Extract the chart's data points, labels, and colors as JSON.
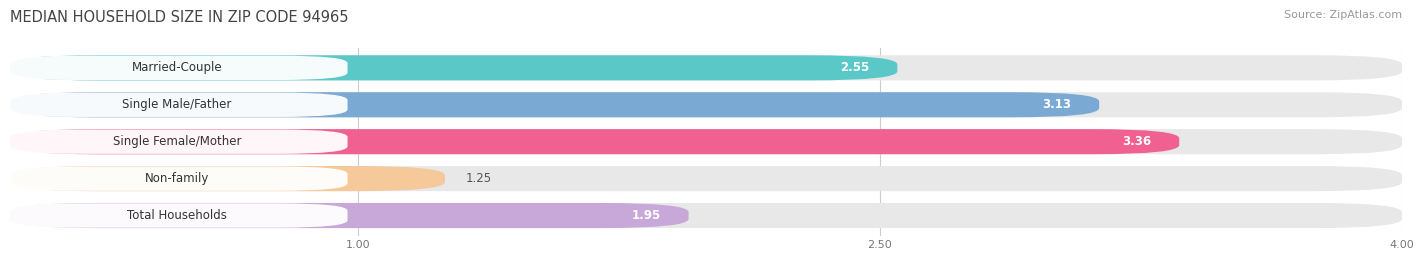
{
  "title": "MEDIAN HOUSEHOLD SIZE IN ZIP CODE 94965",
  "source": "Source: ZipAtlas.com",
  "categories": [
    "Married-Couple",
    "Single Male/Father",
    "Single Female/Mother",
    "Non-family",
    "Total Households"
  ],
  "values": [
    2.55,
    3.13,
    3.36,
    1.25,
    1.95
  ],
  "bar_colors": [
    "#5bc8c8",
    "#7aaad4",
    "#f06090",
    "#f5c99a",
    "#c8a8d8"
  ],
  "bar_bg_color": "#e8e8e8",
  "value_inside_color": "#ffffff",
  "value_outside_color": "#555555",
  "xmin": 0.0,
  "xmax": 4.0,
  "xticks": [
    1.0,
    2.5,
    4.0
  ],
  "xtick_labels": [
    "1.00",
    "2.50",
    "4.00"
  ],
  "title_fontsize": 10.5,
  "source_fontsize": 8,
  "bar_label_fontsize": 8.5,
  "value_fontsize": 8.5,
  "background_color": "#ffffff",
  "label_box_color": "#ffffff",
  "label_text_color": "#333333",
  "grid_color": "#cccccc",
  "bar_gap": 0.08
}
